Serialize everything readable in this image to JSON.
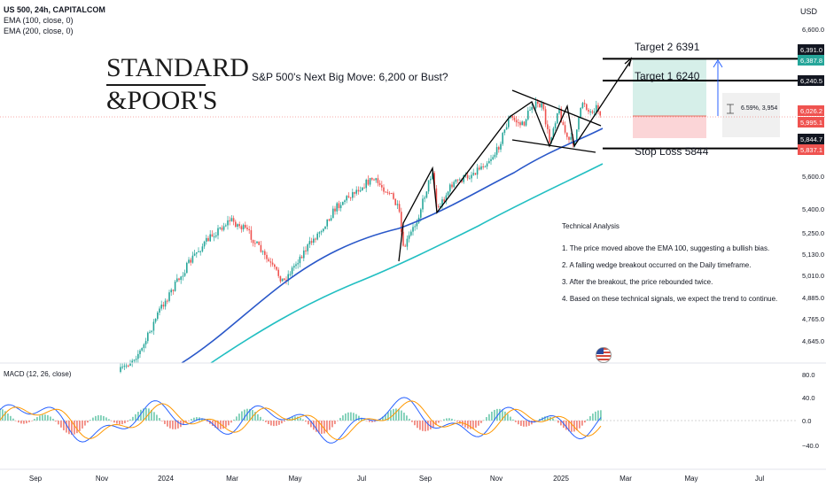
{
  "header": {
    "symbol_line": "US 500, 24h, CAPITALCOM",
    "ema100_label": "EMA (100, close, 0)",
    "ema200_label": "EMA (200, close, 0)",
    "currency": "USD"
  },
  "logo": {
    "line1": "STANDARD",
    "line2": "&POOR'S"
  },
  "headline": "S&P 500's Next Big Move: 6,200 or Bust?",
  "annotations": {
    "target2": "Target 2  6391",
    "target1": "Target 1  6240",
    "stop_loss": "Stop Loss 5844",
    "measure": "6.59%, 3,954"
  },
  "analysis": {
    "title": "Technical Analysis",
    "points": [
      "1.   The price moved above the EMA 100, suggesting a bullish bias.",
      "2.   A falling wedge breakout occurred on the Daily timeframe.",
      "3.   After the breakout, the price rebounded twice.",
      "4.   Based on these technical signals, we expect the trend to continue."
    ]
  },
  "macd": {
    "label": "MACD (12, 26, close)"
  },
  "colors": {
    "up": "#26a69a",
    "down": "#ef5350",
    "ema100": "#2a58c9",
    "ema200": "#22bfc2",
    "macd": "#2962ff",
    "signal": "#ff9800",
    "profit_zone": "#d6efe9",
    "loss_zone": "#fbd5d7"
  },
  "chart_data": {
    "type": "candlestick",
    "price_axis_ticks": [
      "6,600.0",
      "6,240.5",
      "5,600.0",
      "5,400.0",
      "5,250.0",
      "5,130.0",
      "5,010.0",
      "4,885.0",
      "4,765.0",
      "4,645.0"
    ],
    "price_labels": [
      {
        "text": "6,391.0",
        "color": "#131722"
      },
      {
        "text": "6,387.8",
        "color": "#26a69a"
      },
      {
        "text": "6,240.5",
        "color": "#131722"
      },
      {
        "text": "6,026.2",
        "color": "#ef5350"
      },
      {
        "text": "5,995.1",
        "color": "#ef5350"
      },
      {
        "text": "5,844.7",
        "color": "#131722"
      },
      {
        "text": "5,837.1",
        "color": "#ef5350"
      }
    ],
    "time_ticks": [
      "Sep",
      "Nov",
      "2024",
      "Mar",
      "May",
      "Jul",
      "Sep",
      "Nov",
      "2025",
      "Mar",
      "May",
      "Jul"
    ],
    "macd_axis_ticks": [
      "80.0",
      "40.0",
      "0.0",
      "−40.0"
    ],
    "levels": {
      "target2": 6391,
      "target1": 6240,
      "stop_loss": 5844,
      "current": 6026.2
    },
    "series": [
      {
        "name": "EMA (100, close, 0)",
        "type": "line"
      },
      {
        "name": "EMA (200, close, 0)",
        "type": "line"
      },
      {
        "name": "MACD (12, 26, close)",
        "type": "macd"
      }
    ]
  }
}
